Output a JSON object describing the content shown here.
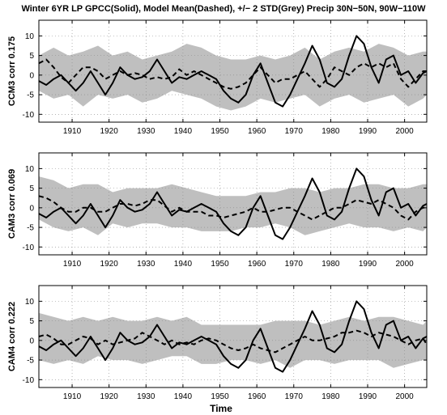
{
  "title": "Winter 6YR LP GPCC(Solid), Model Mean(Dashed), +/− 2 STD(Grey) Precip 30N−50N, 90W−110W",
  "xlabel": "Time",
  "chart_data": [
    {
      "type": "line",
      "ylabel": "CCM3 corr 0.175",
      "xlim": [
        1901,
        2006
      ],
      "ylim": [
        -12,
        14
      ],
      "xticks": [
        1910,
        1920,
        1930,
        1940,
        1950,
        1960,
        1970,
        1980,
        1990,
        2000
      ],
      "yticks": [
        -10,
        -5,
        0,
        5,
        10
      ],
      "grid": true,
      "series": [
        {
          "style": "solid",
          "x": [
            1901,
            1903,
            1905,
            1907,
            1909,
            1911,
            1913,
            1915,
            1917,
            1919,
            1921,
            1923,
            1925,
            1927,
            1929,
            1931,
            1933,
            1935,
            1937,
            1939,
            1941,
            1943,
            1945,
            1947,
            1949,
            1951,
            1953,
            1955,
            1957,
            1959,
            1961,
            1963,
            1965,
            1967,
            1969,
            1971,
            1973,
            1975,
            1977,
            1979,
            1981,
            1983,
            1985,
            1987,
            1989,
            1991,
            1993,
            1995,
            1997,
            1999,
            2001,
            2003,
            2005,
            2006
          ],
          "values": [
            -1.5,
            -2.5,
            -1,
            0,
            -2,
            -4,
            -2,
            1,
            -2,
            -5,
            -2,
            2,
            0,
            -1,
            -0.5,
            1,
            4,
            1,
            -2,
            -0.5,
            -1,
            0,
            1,
            0,
            -1,
            -4,
            -6,
            -7,
            -5,
            0,
            3,
            -2,
            -7,
            -8,
            -5,
            -1,
            3,
            7.5,
            4,
            -2,
            -3,
            -1,
            5,
            10,
            8,
            2,
            -2,
            4,
            5,
            0,
            1,
            -2,
            0.5,
            1
          ]
        },
        {
          "style": "dashed",
          "x": [
            1901,
            1903,
            1905,
            1907,
            1909,
            1911,
            1913,
            1915,
            1917,
            1919,
            1921,
            1923,
            1925,
            1927,
            1929,
            1931,
            1933,
            1935,
            1937,
            1939,
            1941,
            1943,
            1945,
            1947,
            1949,
            1951,
            1953,
            1955,
            1957,
            1959,
            1961,
            1963,
            1965,
            1967,
            1969,
            1971,
            1973,
            1975,
            1977,
            1979,
            1981,
            1983,
            1985,
            1987,
            1989,
            1991,
            1993,
            1995,
            1997,
            1999,
            2001,
            2003,
            2005,
            2006
          ],
          "values": [
            3,
            4,
            2,
            -0.5,
            -2,
            0,
            2,
            2,
            1,
            -1,
            0,
            1,
            0,
            0.5,
            0,
            -1,
            -0.5,
            -1,
            -0.5,
            1.5,
            0,
            1,
            0,
            -1,
            -2,
            -3,
            -3.5,
            -3,
            -2,
            0,
            2,
            0,
            -2,
            -1,
            -1,
            0,
            1,
            -1,
            -3,
            -1,
            2,
            1,
            0,
            2,
            3,
            2,
            3,
            2,
            3,
            -1,
            -3,
            -1,
            1,
            1
          ]
        },
        {
          "style": "band-upper",
          "x": [
            1901,
            1905,
            1909,
            1913,
            1917,
            1921,
            1925,
            1929,
            1933,
            1937,
            1941,
            1945,
            1949,
            1953,
            1957,
            1961,
            1965,
            1969,
            1973,
            1977,
            1981,
            1985,
            1989,
            1993,
            1997,
            2001,
            2005,
            2006
          ],
          "values": [
            5,
            7,
            5,
            6,
            7.5,
            5,
            6,
            4,
            5,
            6,
            8,
            7,
            5,
            4,
            4,
            5,
            4,
            5,
            7,
            4,
            6,
            7,
            6,
            8,
            7,
            5,
            6,
            6
          ]
        },
        {
          "style": "band-lower",
          "x": [
            1901,
            1905,
            1909,
            1913,
            1917,
            1921,
            1925,
            1929,
            1933,
            1937,
            1941,
            1945,
            1949,
            1953,
            1957,
            1961,
            1965,
            1969,
            1973,
            1977,
            1981,
            1985,
            1989,
            1993,
            1997,
            2001,
            2005,
            2006
          ],
          "values": [
            -4,
            -6,
            -5,
            -8,
            -5,
            -6,
            -5,
            -7,
            -6,
            -4,
            -5,
            -6,
            -8,
            -9,
            -8,
            -6,
            -7,
            -6,
            -5,
            -8,
            -6,
            -5,
            -7,
            -6,
            -5,
            -8,
            -6,
            -5
          ]
        }
      ]
    },
    {
      "type": "line",
      "ylabel": "CAM3 corr 0.069",
      "xlim": [
        1901,
        2006
      ],
      "ylim": [
        -12,
        14
      ],
      "xticks": [
        1910,
        1920,
        1930,
        1940,
        1950,
        1960,
        1970,
        1980,
        1990,
        2000
      ],
      "yticks": [
        -10,
        -5,
        0,
        5,
        10
      ],
      "grid": true,
      "series": [
        {
          "style": "solid",
          "x": [
            1901,
            1903,
            1905,
            1907,
            1909,
            1911,
            1913,
            1915,
            1917,
            1919,
            1921,
            1923,
            1925,
            1927,
            1929,
            1931,
            1933,
            1935,
            1937,
            1939,
            1941,
            1943,
            1945,
            1947,
            1949,
            1951,
            1953,
            1955,
            1957,
            1959,
            1961,
            1963,
            1965,
            1967,
            1969,
            1971,
            1973,
            1975,
            1977,
            1979,
            1981,
            1983,
            1985,
            1987,
            1989,
            1991,
            1993,
            1995,
            1997,
            1999,
            2001,
            2003,
            2005,
            2006
          ],
          "values": [
            -1.5,
            -2.5,
            -1,
            0,
            -2,
            -4,
            -2,
            1,
            -2,
            -5,
            -2,
            2,
            0,
            -1,
            -0.5,
            1,
            4,
            1,
            -2,
            -0.5,
            -1,
            0,
            1,
            0,
            -1,
            -4,
            -6,
            -7,
            -5,
            0,
            3,
            -2,
            -7,
            -8,
            -5,
            -1,
            3,
            7.5,
            4,
            -2,
            -3,
            -1,
            5,
            10,
            8,
            2,
            -2,
            4,
            5,
            0,
            1,
            -2,
            0.5,
            1
          ]
        },
        {
          "style": "dashed",
          "x": [
            1901,
            1903,
            1905,
            1907,
            1909,
            1911,
            1913,
            1915,
            1917,
            1919,
            1921,
            1923,
            1925,
            1927,
            1929,
            1931,
            1933,
            1935,
            1937,
            1939,
            1941,
            1943,
            1945,
            1947,
            1949,
            1951,
            1953,
            1955,
            1957,
            1959,
            1961,
            1963,
            1965,
            1967,
            1969,
            1971,
            1973,
            1975,
            1977,
            1979,
            1981,
            1983,
            1985,
            1987,
            1989,
            1991,
            1993,
            1995,
            1997,
            1999,
            2001,
            2003,
            2005,
            2006
          ],
          "values": [
            3,
            2.5,
            1.5,
            0,
            -1,
            -1,
            0,
            0,
            -1,
            -1,
            0,
            1,
            1,
            0.5,
            1,
            2,
            2,
            0.5,
            -1,
            0,
            -1,
            -1,
            -1,
            -2,
            -2,
            -2.5,
            -2,
            -1.5,
            -1,
            0,
            -1,
            -1,
            -0.5,
            0,
            0,
            -1,
            -2,
            -3,
            -2,
            -1,
            0,
            0,
            1,
            2,
            1.5,
            1,
            2,
            1,
            0,
            -2,
            -3,
            -1,
            0,
            0
          ]
        },
        {
          "style": "band-upper",
          "x": [
            1901,
            1905,
            1909,
            1913,
            1917,
            1921,
            1925,
            1929,
            1933,
            1937,
            1941,
            1945,
            1949,
            1953,
            1957,
            1961,
            1965,
            1969,
            1973,
            1977,
            1981,
            1985,
            1989,
            1993,
            1997,
            2001,
            2005,
            2006
          ],
          "values": [
            8,
            7,
            5,
            6,
            6,
            4,
            5,
            5,
            5,
            6,
            5,
            4,
            3,
            3,
            3,
            4,
            4,
            5,
            5,
            4,
            5,
            5,
            6,
            6,
            5,
            5,
            6,
            6
          ]
        },
        {
          "style": "band-lower",
          "x": [
            1901,
            1905,
            1909,
            1913,
            1917,
            1921,
            1925,
            1929,
            1933,
            1937,
            1941,
            1945,
            1949,
            1953,
            1957,
            1961,
            1965,
            1969,
            1973,
            1977,
            1981,
            1985,
            1989,
            1993,
            1997,
            2001,
            2005,
            2006
          ],
          "values": [
            -3,
            -5,
            -6,
            -5,
            -7,
            -4,
            -5,
            -4,
            -4,
            -5,
            -5,
            -6,
            -6,
            -6,
            -5,
            -5,
            -4,
            -5,
            -7,
            -6,
            -5,
            -4,
            -5,
            -5,
            -6,
            -5,
            -6,
            -5
          ]
        }
      ]
    },
    {
      "type": "line",
      "ylabel": "CAM4 corr 0.222",
      "xlim": [
        1901,
        2006
      ],
      "ylim": [
        -12,
        14
      ],
      "xticks": [
        1910,
        1920,
        1930,
        1940,
        1950,
        1960,
        1970,
        1980,
        1990,
        2000
      ],
      "yticks": [
        -10,
        -5,
        0,
        5,
        10
      ],
      "grid": true,
      "series": [
        {
          "style": "solid",
          "x": [
            1901,
            1903,
            1905,
            1907,
            1909,
            1911,
            1913,
            1915,
            1917,
            1919,
            1921,
            1923,
            1925,
            1927,
            1929,
            1931,
            1933,
            1935,
            1937,
            1939,
            1941,
            1943,
            1945,
            1947,
            1949,
            1951,
            1953,
            1955,
            1957,
            1959,
            1961,
            1963,
            1965,
            1967,
            1969,
            1971,
            1973,
            1975,
            1977,
            1979,
            1981,
            1983,
            1985,
            1987,
            1989,
            1991,
            1993,
            1995,
            1997,
            1999,
            2001,
            2003,
            2005,
            2006
          ],
          "values": [
            -1.5,
            -2.5,
            -1,
            0,
            -2,
            -4,
            -2,
            1,
            -2,
            -5,
            -2,
            2,
            0,
            -1,
            -0.5,
            1,
            4,
            1,
            -2,
            -0.5,
            -1,
            0,
            1,
            0,
            -1,
            -4,
            -6,
            -7,
            -5,
            0,
            3,
            -2,
            -7,
            -8,
            -5,
            -1,
            3,
            7.5,
            4,
            -2,
            -3,
            -1,
            5,
            10,
            8,
            2,
            -2,
            4,
            5,
            0,
            1,
            -2,
            0.5,
            1
          ]
        },
        {
          "style": "dashed",
          "x": [
            1901,
            1903,
            1905,
            1907,
            1909,
            1911,
            1913,
            1915,
            1917,
            1919,
            1921,
            1923,
            1925,
            1927,
            1929,
            1931,
            1933,
            1935,
            1937,
            1939,
            1941,
            1943,
            1945,
            1947,
            1949,
            1951,
            1953,
            1955,
            1957,
            1959,
            1961,
            1963,
            1965,
            1967,
            1969,
            1971,
            1973,
            1975,
            1977,
            1979,
            1981,
            1983,
            1985,
            1987,
            1989,
            1991,
            1993,
            1995,
            1997,
            1999,
            2001,
            2003,
            2005,
            2006
          ],
          "values": [
            1,
            1.5,
            0.5,
            -1,
            -1,
            0,
            1,
            0.5,
            -1,
            0,
            -1,
            -0.5,
            0,
            0.5,
            2,
            1,
            0,
            -1,
            0,
            -1,
            -0.5,
            -1,
            0,
            0.5,
            0,
            -1,
            -2,
            -2.5,
            -2,
            -1,
            -2,
            -2.5,
            -3,
            -2,
            -1,
            0,
            1,
            0,
            0,
            0.5,
            1,
            2,
            2,
            2.5,
            2,
            1,
            2,
            1.5,
            1,
            0,
            -1,
            0,
            0.5,
            -1
          ]
        },
        {
          "style": "band-upper",
          "x": [
            1901,
            1905,
            1909,
            1913,
            1917,
            1921,
            1925,
            1929,
            1933,
            1937,
            1941,
            1945,
            1949,
            1953,
            1957,
            1961,
            1965,
            1969,
            1973,
            1977,
            1981,
            1985,
            1989,
            1993,
            1997,
            2001,
            2005,
            2006
          ],
          "values": [
            7,
            6,
            5,
            6,
            5,
            6,
            5,
            5,
            6,
            5,
            6,
            4,
            4,
            4,
            4,
            4,
            5,
            5,
            5,
            4,
            5,
            6,
            5,
            6,
            6,
            5,
            4,
            5
          ]
        },
        {
          "style": "band-lower",
          "x": [
            1901,
            1905,
            1909,
            1913,
            1917,
            1921,
            1925,
            1929,
            1933,
            1937,
            1941,
            1945,
            1949,
            1953,
            1957,
            1961,
            1965,
            1969,
            1973,
            1977,
            1981,
            1985,
            1989,
            1993,
            1997,
            2001,
            2005,
            2006
          ],
          "values": [
            -5,
            -6,
            -5,
            -6,
            -4,
            -5,
            -5,
            -6,
            -5,
            -4,
            -4,
            -6,
            -6,
            -5,
            -5,
            -6,
            -5,
            -7,
            -5,
            -5,
            -6,
            -5,
            -5,
            -5,
            -7,
            -6,
            -5,
            -5
          ]
        }
      ]
    }
  ]
}
